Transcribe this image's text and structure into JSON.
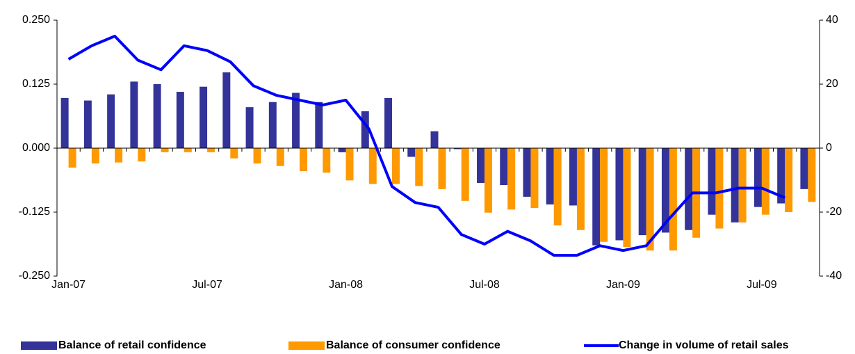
{
  "chart_data": {
    "type": "bar-line",
    "categories": [
      "Jan-07",
      null,
      null,
      null,
      null,
      null,
      "Jul-07",
      null,
      null,
      null,
      null,
      null,
      "Jan-08",
      null,
      null,
      null,
      null,
      null,
      "Jul-08",
      null,
      null,
      null,
      null,
      null,
      "Jan-09",
      null,
      null,
      null,
      null,
      null,
      "Jul-09",
      null,
      null
    ],
    "series": [
      {
        "name": "Balance of retail confidence",
        "color": "#333399",
        "type": "bar",
        "values": [
          0.098,
          0.093,
          0.105,
          0.13,
          0.125,
          0.11,
          0.12,
          0.148,
          0.08,
          0.09,
          0.108,
          0.09,
          -0.008,
          0.072,
          0.098,
          -0.017,
          0.033,
          -0.002,
          -0.068,
          -0.072,
          -0.095,
          -0.11,
          -0.112,
          -0.19,
          -0.18,
          -0.17,
          -0.165,
          -0.16,
          -0.13,
          -0.145,
          -0.115,
          -0.108,
          -0.08
        ]
      },
      {
        "name": "Balance of consumer confidence",
        "color": "#ff9900",
        "type": "bar",
        "values": [
          -0.038,
          -0.03,
          -0.028,
          -0.026,
          -0.008,
          -0.008,
          -0.008,
          -0.02,
          -0.03,
          -0.035,
          -0.045,
          -0.048,
          -0.063,
          -0.07,
          -0.07,
          -0.074,
          -0.08,
          -0.103,
          -0.126,
          -0.12,
          -0.117,
          -0.151,
          -0.16,
          -0.183,
          -0.193,
          -0.2,
          -0.2,
          -0.175,
          -0.157,
          -0.145,
          -0.13,
          -0.125,
          -0.105
        ]
      },
      {
        "name": "Change in volume of retail sales",
        "color": "#0000ff",
        "type": "line",
        "axis": "y2",
        "values": [
          27.8,
          32,
          35,
          27.5,
          24.5,
          32,
          30.5,
          27,
          19.5,
          16.5,
          15,
          13.5,
          15,
          6,
          -12,
          -17,
          -18.5,
          -27,
          -30,
          -26,
          -29,
          -33.5,
          -33.5,
          -30.5,
          -32,
          -30.5,
          -22,
          -14,
          -14,
          -12.5,
          -12.5,
          -15.5,
          null
        ]
      }
    ],
    "ylim": [
      -0.25,
      0.25
    ],
    "yticks": [
      {
        "value": 0.25,
        "label": "0.250"
      },
      {
        "value": 0.125,
        "label": "0.125"
      },
      {
        "value": 0,
        "label": "0.000"
      },
      {
        "value": -0.125,
        "label": "-0.125"
      },
      {
        "value": -0.25,
        "label": "-0.250"
      }
    ],
    "y2lim": [
      -40,
      40
    ],
    "y2ticks": [
      40,
      20,
      0,
      -20,
      -40
    ],
    "legend": "bottom"
  }
}
